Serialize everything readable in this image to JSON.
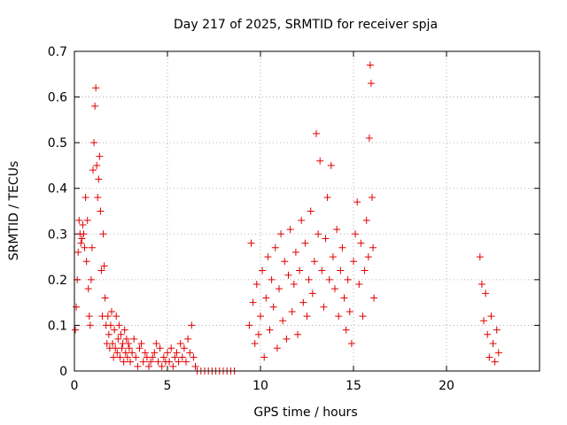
{
  "chart_data": {
    "type": "scatter",
    "title": "Day 217 of 2025, SRMTID for receiver spja",
    "xlabel": "GPS time / hours",
    "ylabel": "SRMTID / TECUs",
    "xlim": [
      0,
      25
    ],
    "ylim": [
      0,
      0.7
    ],
    "xticks": [
      0,
      5,
      10,
      15,
      20
    ],
    "yticks": [
      0,
      0.1,
      0.2,
      0.3,
      0.4,
      0.5,
      0.6,
      0.7
    ],
    "xtick_labels": [
      "0",
      "5",
      "10",
      "15",
      "20"
    ],
    "ytick_labels": [
      "0",
      "0.1",
      "0.2",
      "0.3",
      "0.4",
      "0.5",
      "0.6",
      "0.7"
    ],
    "grid": true,
    "marker": "+",
    "marker_color": "#e00000",
    "series": [
      {
        "name": "SRMTID",
        "x": [
          0.05,
          0.1,
          0.15,
          0.2,
          0.25,
          0.3,
          0.35,
          0.4,
          0.45,
          0.5,
          0.55,
          0.6,
          0.65,
          0.7,
          0.75,
          0.8,
          0.85,
          0.9,
          0.95,
          1.0,
          1.05,
          1.1,
          1.15,
          1.2,
          1.25,
          1.3,
          1.35,
          1.4,
          1.45,
          1.5,
          1.55,
          1.6,
          1.65,
          1.7,
          1.75,
          1.8,
          1.85,
          1.9,
          1.95,
          2.0,
          2.05,
          2.1,
          2.15,
          2.2,
          2.25,
          2.3,
          2.35,
          2.4,
          2.45,
          2.5,
          2.55,
          2.6,
          2.65,
          2.7,
          2.75,
          2.8,
          2.85,
          2.9,
          2.95,
          3.0,
          3.1,
          3.2,
          3.3,
          3.4,
          3.5,
          3.6,
          3.7,
          3.8,
          3.9,
          4.0,
          4.1,
          4.2,
          4.3,
          4.4,
          4.5,
          4.6,
          4.7,
          4.8,
          4.9,
          5.0,
          5.1,
          5.2,
          5.3,
          5.4,
          5.5,
          5.6,
          5.7,
          5.8,
          5.9,
          6.0,
          6.1,
          6.2,
          6.3,
          6.4,
          6.5,
          6.6,
          6.8,
          7.0,
          7.2,
          7.4,
          7.6,
          7.8,
          8.0,
          8.2,
          8.4,
          8.6,
          9.4,
          9.5,
          9.6,
          9.7,
          9.8,
          9.9,
          10.0,
          10.1,
          10.2,
          10.3,
          10.4,
          10.5,
          10.6,
          10.7,
          10.8,
          10.9,
          11.0,
          11.1,
          11.2,
          11.3,
          11.4,
          11.5,
          11.6,
          11.7,
          11.8,
          11.9,
          12.0,
          12.1,
          12.2,
          12.3,
          12.4,
          12.5,
          12.6,
          12.7,
          12.8,
          12.9,
          13.0,
          13.1,
          13.2,
          13.3,
          13.4,
          13.5,
          13.6,
          13.7,
          13.8,
          13.9,
          14.0,
          14.1,
          14.2,
          14.3,
          14.4,
          14.5,
          14.6,
          14.7,
          14.8,
          14.9,
          15.0,
          15.1,
          15.2,
          15.3,
          15.4,
          15.5,
          15.6,
          15.7,
          15.8,
          15.85,
          15.9,
          15.95,
          16.0,
          16.05,
          16.1,
          21.8,
          21.9,
          22.0,
          22.1,
          22.2,
          22.3,
          22.4,
          22.5,
          22.6,
          22.7,
          22.8
        ],
        "y": [
          0.09,
          0.14,
          0.2,
          0.26,
          0.33,
          0.3,
          0.28,
          0.29,
          0.32,
          0.3,
          0.27,
          0.38,
          0.24,
          0.33,
          0.18,
          0.12,
          0.1,
          0.2,
          0.27,
          0.44,
          0.5,
          0.58,
          0.62,
          0.45,
          0.38,
          0.42,
          0.47,
          0.35,
          0.22,
          0.12,
          0.3,
          0.23,
          0.16,
          0.1,
          0.06,
          0.12,
          0.08,
          0.05,
          0.1,
          0.13,
          0.06,
          0.03,
          0.09,
          0.05,
          0.12,
          0.04,
          0.07,
          0.1,
          0.03,
          0.08,
          0.05,
          0.06,
          0.02,
          0.09,
          0.04,
          0.07,
          0.03,
          0.06,
          0.05,
          0.02,
          0.04,
          0.07,
          0.03,
          0.01,
          0.05,
          0.06,
          0.02,
          0.04,
          0.03,
          0.01,
          0.02,
          0.03,
          0.04,
          0.06,
          0.02,
          0.05,
          0.01,
          0.03,
          0.02,
          0.04,
          0.02,
          0.05,
          0.01,
          0.03,
          0.04,
          0.02,
          0.06,
          0.03,
          0.05,
          0.02,
          0.07,
          0.04,
          0.1,
          0.03,
          0.01,
          0.0,
          0.0,
          0.0,
          0.0,
          0.0,
          0.0,
          0.0,
          0.0,
          0.0,
          0.0,
          0.0,
          0.1,
          0.28,
          0.15,
          0.06,
          0.19,
          0.08,
          0.12,
          0.22,
          0.03,
          0.16,
          0.25,
          0.09,
          0.2,
          0.14,
          0.27,
          0.05,
          0.18,
          0.3,
          0.11,
          0.24,
          0.07,
          0.21,
          0.31,
          0.13,
          0.19,
          0.26,
          0.08,
          0.22,
          0.33,
          0.15,
          0.28,
          0.12,
          0.2,
          0.35,
          0.17,
          0.24,
          0.52,
          0.3,
          0.46,
          0.22,
          0.14,
          0.29,
          0.38,
          0.2,
          0.45,
          0.25,
          0.18,
          0.31,
          0.12,
          0.22,
          0.27,
          0.16,
          0.09,
          0.2,
          0.13,
          0.06,
          0.24,
          0.3,
          0.37,
          0.19,
          0.28,
          0.12,
          0.22,
          0.33,
          0.25,
          0.51,
          0.67,
          0.63,
          0.38,
          0.27,
          0.16,
          0.25,
          0.19,
          0.11,
          0.17,
          0.08,
          0.03,
          0.12,
          0.06,
          0.02,
          0.09,
          0.04
        ]
      }
    ]
  }
}
